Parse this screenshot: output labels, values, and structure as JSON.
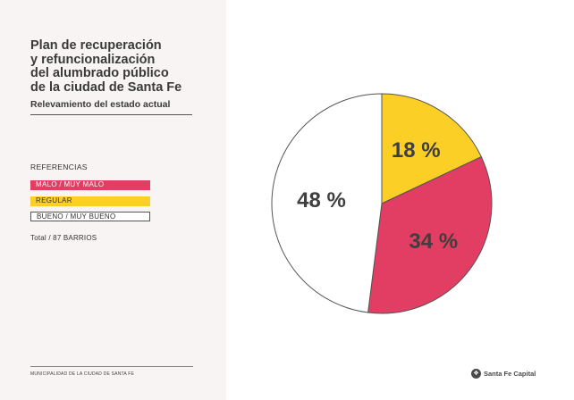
{
  "header": {
    "title_lines": [
      "Plan de recuperación",
      "y refuncionalización",
      "del alumbrado público",
      "de la ciudad de Santa Fe"
    ],
    "subtitle": "Relevamiento del estado actual"
  },
  "legend": {
    "title": "REFERENCIAS",
    "items": [
      {
        "label": "MALO / MUY MALO",
        "color": "#e23d63"
      },
      {
        "label": "REGULAR",
        "color": "#fbcf25"
      },
      {
        "label": "BUENO / MUY BUENO",
        "color": "#ffffff"
      }
    ],
    "total": "Total / 87 BARRIOS"
  },
  "footer": {
    "org": "MUNICIPALIDAD DE LA CIUDAD DE SANTA FE",
    "brand": "Santa Fe Capital"
  },
  "chart_data": {
    "type": "pie",
    "title": "Relevamiento del estado actual",
    "categories": [
      "REGULAR",
      "MALO / MUY MALO",
      "BUENO / MUY BUENO"
    ],
    "values": [
      18,
      34,
      48
    ],
    "labels": [
      "18 %",
      "34 %",
      "48 %"
    ],
    "colors": [
      "#fbcf25",
      "#e23d63",
      "#ffffff"
    ],
    "stroke_color": "#555555"
  }
}
